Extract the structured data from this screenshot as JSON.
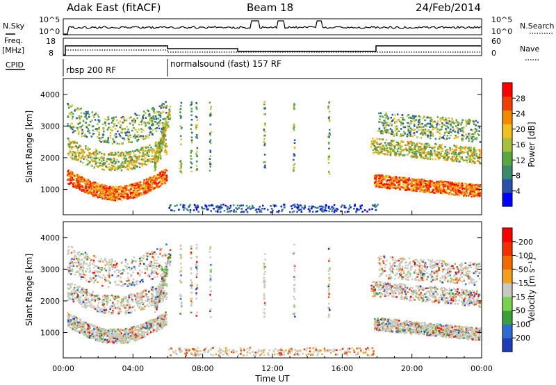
{
  "header": {
    "station": "Adak East (fitACF)",
    "beam": "Beam 18",
    "date": "24/Feb/2014"
  },
  "summary": {
    "nsky_label": "N.Sky",
    "nsky_ticks": [
      "10^5",
      "10^0"
    ],
    "nsearch_label": "N.Search",
    "nsearch_ticks": [
      "10^5",
      "10^0"
    ],
    "freq_label": "Freq.",
    "freq_unit": "[MHz]",
    "freq_ticks": [
      "18",
      "8"
    ],
    "nave_label": "Nave",
    "nave_ticks": [
      "60",
      "0"
    ],
    "cpid_label": "CPID",
    "cpid_entries": [
      "rbsp 200 RF",
      "normalsound (fast) 157 RF"
    ]
  },
  "chart_data": [
    {
      "type": "heatmap",
      "name": "power_panel",
      "xlabel": "",
      "ylabel": "Slant Range [km]",
      "yticks": [
        1000,
        2000,
        3000,
        4000
      ],
      "ylim": [
        200,
        4500
      ],
      "xlim_hours": [
        0,
        24
      ],
      "colorbar_label": "Power [dB]",
      "colorbar_ticks": [
        "4",
        "8",
        "12",
        "16",
        "20",
        "24",
        "28"
      ],
      "colors": [
        "#0000ff",
        "#2a52a8",
        "#3a8a6e",
        "#5aa640",
        "#a8c040",
        "#f0c020",
        "#f08a00",
        "#f04000",
        "#ff0000"
      ]
    },
    {
      "type": "heatmap",
      "name": "velocity_panel",
      "xlabel": "Time UT",
      "ylabel": "Slant Range [km]",
      "yticks": [
        1000,
        2000,
        3000,
        4000
      ],
      "ylim": [
        200,
        4500
      ],
      "xlim_hours": [
        0,
        24
      ],
      "xticks": [
        "00:00",
        "04:00",
        "08:00",
        "12:00",
        "16:00",
        "20:00",
        "00:00"
      ],
      "colorbar_label": "Velocity [m s⁻¹]",
      "colorbar_ticks": [
        "200",
        "100",
        "50",
        "15",
        "-15",
        "-50",
        "-100",
        "-200"
      ],
      "colors": [
        "#1e3cb4",
        "#2f6ad0",
        "#3aa03a",
        "#7ad050",
        "#c8c8c0",
        "#f0a020",
        "#f06a00",
        "#f03000",
        "#ff0000"
      ]
    }
  ]
}
